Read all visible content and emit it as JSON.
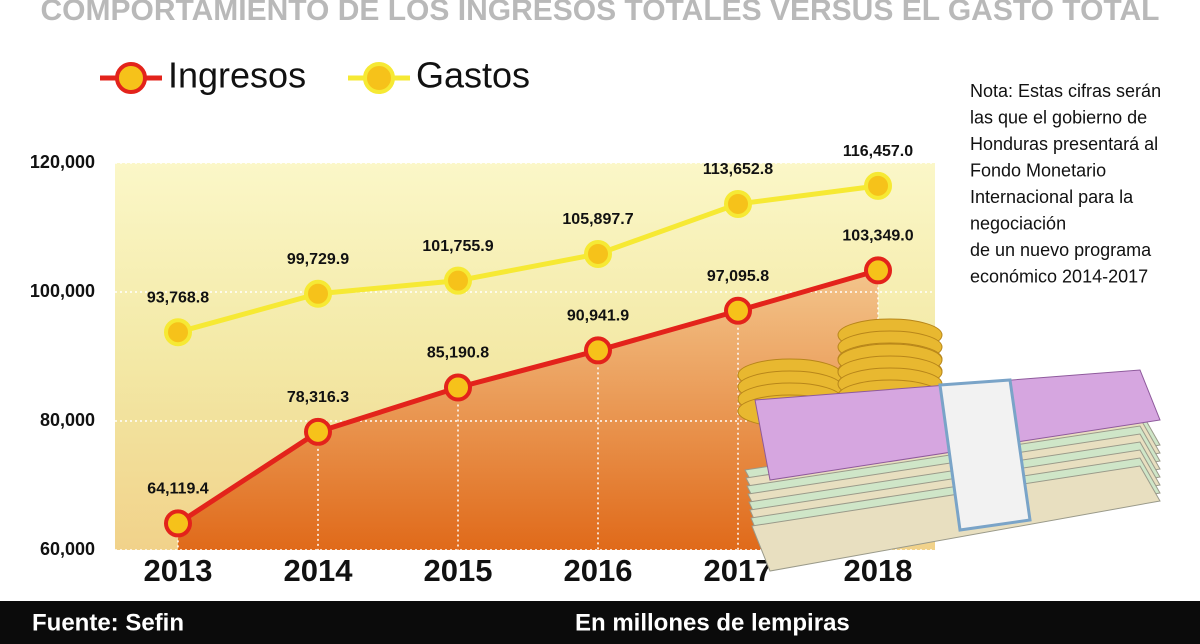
{
  "chart_data": {
    "type": "line",
    "title": "COMPORTAMIENTO DE LOS INGRESOS TOTALES VERSUS EL GASTO TOTAL",
    "categories": [
      "2013",
      "2014",
      "2015",
      "2016",
      "2017",
      "2018"
    ],
    "series": [
      {
        "name": "Ingresos",
        "color": "#e3231b",
        "values": [
          64119.4,
          78316.3,
          85190.8,
          90941.9,
          97095.8,
          103349.0
        ],
        "value_labels": [
          "64,119.4",
          "78,316.3",
          "85,190.8",
          "90,941.9",
          "97,095.8",
          "103,349.0"
        ]
      },
      {
        "name": "Gastos",
        "color": "#f6e934",
        "values": [
          93768.8,
          99729.9,
          101755.9,
          105897.7,
          113652.8,
          116457.0
        ],
        "value_labels": [
          "93,768.8",
          "99,729.9",
          "101,755.9",
          "105,897.7",
          "113,652.8",
          "116,457.0"
        ]
      }
    ],
    "ylim": [
      60000,
      120000
    ],
    "yticks": [
      {
        "value": 60000,
        "label": "60,000"
      },
      {
        "value": 80000,
        "label": "80,000"
      },
      {
        "value": 100000,
        "label": "100,000"
      },
      {
        "value": 120000,
        "label": "120,000"
      }
    ],
    "grid": true,
    "note": [
      "Nota: Estas cifras serán",
      "las que el gobierno de",
      "Honduras presentará al",
      "Fondo Monetario",
      "Internacional para la",
      "negociación",
      "de un nuevo programa",
      "económico 2014-2017"
    ],
    "source": "Fuente: Sefin",
    "units": "En millones de lempiras"
  }
}
